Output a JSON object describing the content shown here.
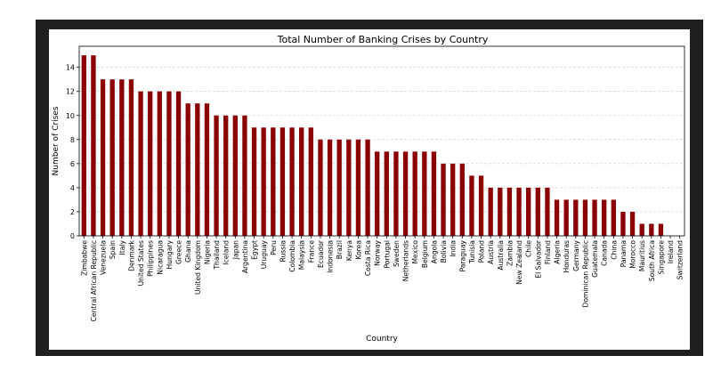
{
  "chart_data": {
    "type": "bar",
    "title": "Total Number of Banking Crises by Country",
    "xlabel": "Country",
    "ylabel": "Number of Crises",
    "ylim": [
      0,
      15.75
    ],
    "yticks": [
      0,
      2,
      4,
      6,
      8,
      10,
      12,
      14
    ],
    "grid": "y-dashed",
    "bar_color": "#8b0000",
    "categories": [
      "Zimbabwe",
      "Central African Republic",
      "Venezuela",
      "Spain",
      "Italy",
      "Denmark",
      "United States",
      "Philippines",
      "Nicaragua",
      "Hungary",
      "Greece",
      "Ghana",
      "United Kingdom",
      "Nigeria",
      "Thailand",
      "Iceland",
      "Japan",
      "Argentina",
      "Egypt",
      "Uruguay",
      "Peru",
      "Russia",
      "Colombia",
      "Malaysia",
      "France",
      "Ecuador",
      "Indonesia",
      "Brazil",
      "Kenya",
      "Korea",
      "Costa Rica",
      "Norway",
      "Portugal",
      "Sweden",
      "Netherlands",
      "Mexico",
      "Belgium",
      "Angola",
      "Bolivia",
      "India",
      "Paraguay",
      "Tunisia",
      "Poland",
      "Austria",
      "Australia",
      "Zambia",
      "New Zealand",
      "Chile",
      "El Salvador",
      "Finland",
      "Algeria",
      "Honduras",
      "Germany",
      "Dominican Republic",
      "Guatemala",
      "Canada",
      "China",
      "Panama",
      "Morocco",
      "Mauritius",
      "South Africa",
      "Singapore",
      "Ireland",
      "Switzerland"
    ],
    "values": [
      15,
      15,
      13,
      13,
      13,
      13,
      12,
      12,
      12,
      12,
      12,
      11,
      11,
      11,
      10,
      10,
      10,
      10,
      9,
      9,
      9,
      9,
      9,
      9,
      9,
      8,
      8,
      8,
      8,
      8,
      8,
      7,
      7,
      7,
      7,
      7,
      7,
      7,
      6,
      6,
      6,
      5,
      5,
      4,
      4,
      4,
      4,
      4,
      4,
      4,
      3,
      3,
      3,
      3,
      3,
      3,
      3,
      2,
      2,
      1,
      1,
      1,
      0,
      0
    ]
  }
}
